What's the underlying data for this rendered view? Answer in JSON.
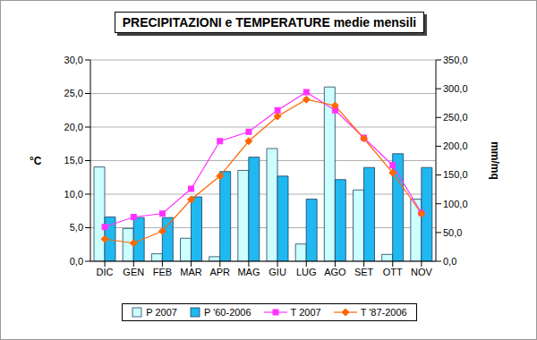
{
  "chart_data": {
    "type": "combo",
    "title": "PRECIPITAZIONI e TEMPERATURE medie mensili",
    "y_label": "°C",
    "y2_label": "mm/mq",
    "categories": [
      "DIC",
      "GEN",
      "FEB",
      "MAR",
      "APR",
      "MAG",
      "GIU",
      "LUG",
      "AGO",
      "SET",
      "OTT",
      "NOV"
    ],
    "ylim": [
      0,
      30
    ],
    "yticks": [
      {
        "value": 0,
        "label": "0,0"
      },
      {
        "value": 5,
        "label": "5,0"
      },
      {
        "value": 10,
        "label": "10,0"
      },
      {
        "value": 15,
        "label": "15,0"
      },
      {
        "value": 20,
        "label": "20,0"
      },
      {
        "value": 25,
        "label": "25,0"
      },
      {
        "value": 30,
        "label": "30,0"
      }
    ],
    "y2lim": [
      0,
      350
    ],
    "y2ticks": [
      {
        "value": 0,
        "label": "0,0"
      },
      {
        "value": 50,
        "label": "50,0"
      },
      {
        "value": 100,
        "label": "100,0"
      },
      {
        "value": 150,
        "label": "150,0"
      },
      {
        "value": 200,
        "label": "200,0"
      },
      {
        "value": 250,
        "label": "250,0"
      },
      {
        "value": 300,
        "label": "300,0"
      },
      {
        "value": 350,
        "label": "350,0"
      }
    ],
    "grid": true,
    "legend": "bottom",
    "series": [
      {
        "name": "P 2007",
        "type": "bar",
        "axis": "y2",
        "color": "#ccffff",
        "values": [
          164,
          57,
          13,
          40,
          8,
          158,
          196,
          30,
          303,
          124,
          12,
          108
        ]
      },
      {
        "name": "P '60-2006",
        "type": "bar",
        "axis": "y2",
        "color": "#1fb8f0",
        "values": [
          77,
          76,
          76,
          112,
          156,
          181,
          148,
          108,
          142,
          163,
          187,
          163
        ]
      },
      {
        "name": "T 2007",
        "type": "line",
        "color": "#ff33ff",
        "marker": "square",
        "values": [
          5.1,
          6.6,
          7.1,
          10.8,
          17.9,
          19.3,
          22.5,
          25.2,
          22.5,
          18.4,
          14.3,
          7.2
        ]
      },
      {
        "name": "T '87-2006",
        "type": "line",
        "color": "#ff6600",
        "marker": "diamond",
        "values": [
          3.3,
          2.7,
          4.5,
          9.2,
          12.7,
          17.9,
          21.6,
          24.1,
          23.2,
          18.3,
          13.2,
          7.1
        ]
      }
    ]
  }
}
